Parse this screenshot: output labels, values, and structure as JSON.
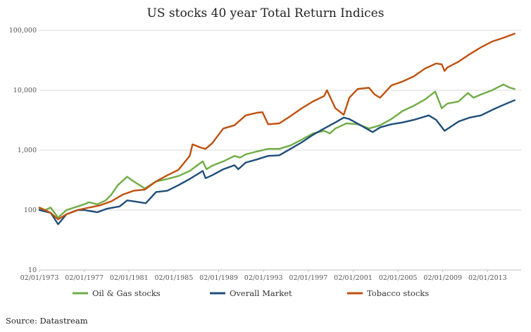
{
  "chart_data": {
    "type": "line",
    "title": "US stocks 40 year Total Return Indices",
    "source": "Source: Datastream",
    "y_scale": "log",
    "ylim": [
      10,
      100000
    ],
    "xlim": [
      "1973-01-02",
      "2015-12-31"
    ],
    "y_ticks": [
      {
        "value": 10,
        "label": "10"
      },
      {
        "value": 100,
        "label": "100"
      },
      {
        "value": 1000,
        "label": "1,000"
      },
      {
        "value": 10000,
        "label": "10,000"
      },
      {
        "value": 100000,
        "label": "100,000"
      }
    ],
    "x_ticks": [
      {
        "value": "1973-01-02",
        "label": "02/01/1973"
      },
      {
        "value": "1977-01-02",
        "label": "02/01/1977"
      },
      {
        "value": "1981-01-02",
        "label": "02/01/1981"
      },
      {
        "value": "1985-01-02",
        "label": "02/01/1985"
      },
      {
        "value": "1989-01-02",
        "label": "02/01/1989"
      },
      {
        "value": "1993-01-02",
        "label": "02/01/1993"
      },
      {
        "value": "1997-01-02",
        "label": "02/01/1997"
      },
      {
        "value": "2001-01-02",
        "label": "02/01/2001"
      },
      {
        "value": "2005-01-02",
        "label": "02/01/2005"
      },
      {
        "value": "2009-01-02",
        "label": "02/01/2009"
      },
      {
        "value": "2013-01-02",
        "label": "02/01/2013"
      }
    ],
    "grid": true,
    "legend_position": "bottom",
    "series": [
      {
        "name": "Oil & Gas stocks",
        "color": "#70ad47",
        "points": [
          [
            "1973-01-02",
            105
          ],
          [
            "1973-07-01",
            100
          ],
          [
            "1974-01-01",
            110
          ],
          [
            "1974-09-01",
            75
          ],
          [
            "1975-06-01",
            100
          ],
          [
            "1976-06-01",
            115
          ],
          [
            "1977-01-01",
            125
          ],
          [
            "1977-06-01",
            135
          ],
          [
            "1978-03-01",
            125
          ],
          [
            "1978-12-01",
            145
          ],
          [
            "1979-06-01",
            180
          ],
          [
            "1980-01-01",
            260
          ],
          [
            "1980-11-01",
            360
          ],
          [
            "1981-06-01",
            300
          ],
          [
            "1982-06-01",
            230
          ],
          [
            "1983-06-01",
            300
          ],
          [
            "1984-06-01",
            330
          ],
          [
            "1985-06-01",
            370
          ],
          [
            "1986-06-01",
            450
          ],
          [
            "1987-08-01",
            650
          ],
          [
            "1987-12-01",
            480
          ],
          [
            "1988-06-01",
            550
          ],
          [
            "1989-06-01",
            650
          ],
          [
            "1990-06-01",
            800
          ],
          [
            "1990-12-01",
            750
          ],
          [
            "1991-06-01",
            850
          ],
          [
            "1992-06-01",
            950
          ],
          [
            "1993-06-01",
            1050
          ],
          [
            "1994-06-01",
            1050
          ],
          [
            "1995-06-01",
            1200
          ],
          [
            "1996-06-01",
            1500
          ],
          [
            "1997-06-01",
            1900
          ],
          [
            "1998-06-01",
            2100
          ],
          [
            "1998-12-01",
            1900
          ],
          [
            "1999-06-01",
            2300
          ],
          [
            "2000-06-01",
            2800
          ],
          [
            "2001-06-01",
            2700
          ],
          [
            "2002-06-01",
            2300
          ],
          [
            "2003-06-01",
            2600
          ],
          [
            "2004-06-01",
            3300
          ],
          [
            "2005-06-01",
            4500
          ],
          [
            "2006-06-01",
            5500
          ],
          [
            "2007-06-01",
            7000
          ],
          [
            "2008-05-01",
            9500
          ],
          [
            "2008-12-01",
            5000
          ],
          [
            "2009-06-01",
            6000
          ],
          [
            "2010-06-01",
            6500
          ],
          [
            "2011-04-01",
            9000
          ],
          [
            "2011-10-01",
            7500
          ],
          [
            "2012-06-01",
            8500
          ],
          [
            "2013-06-01",
            10000
          ],
          [
            "2014-06-01",
            12500
          ],
          [
            "2015-01-01",
            11000
          ],
          [
            "2015-06-01",
            10500
          ]
        ]
      },
      {
        "name": "Overall Market",
        "color": "#1f4e79",
        "points": [
          [
            "1973-01-02",
            100
          ],
          [
            "1973-07-01",
            95
          ],
          [
            "1974-01-01",
            90
          ],
          [
            "1974-09-01",
            58
          ],
          [
            "1975-06-01",
            85
          ],
          [
            "1976-06-01",
            100
          ],
          [
            "1977-01-01",
            100
          ],
          [
            "1978-03-01",
            92
          ],
          [
            "1979-01-01",
            105
          ],
          [
            "1980-03-01",
            115
          ],
          [
            "1980-11-01",
            145
          ],
          [
            "1981-06-01",
            140
          ],
          [
            "1982-07-01",
            130
          ],
          [
            "1983-06-01",
            200
          ],
          [
            "1984-06-01",
            210
          ],
          [
            "1985-06-01",
            260
          ],
          [
            "1986-06-01",
            330
          ],
          [
            "1987-08-01",
            450
          ],
          [
            "1987-11-01",
            340
          ],
          [
            "1988-06-01",
            380
          ],
          [
            "1989-06-01",
            480
          ],
          [
            "1990-06-01",
            560
          ],
          [
            "1990-10-01",
            480
          ],
          [
            "1991-06-01",
            620
          ],
          [
            "1992-06-01",
            700
          ],
          [
            "1993-06-01",
            800
          ],
          [
            "1994-06-01",
            820
          ],
          [
            "1995-06-01",
            1050
          ],
          [
            "1996-06-01",
            1350
          ],
          [
            "1997-06-01",
            1800
          ],
          [
            "1998-06-01",
            2300
          ],
          [
            "1999-06-01",
            2900
          ],
          [
            "2000-03-01",
            3500
          ],
          [
            "2000-09-01",
            3300
          ],
          [
            "2001-09-01",
            2600
          ],
          [
            "2002-10-01",
            2000
          ],
          [
            "2003-06-01",
            2400
          ],
          [
            "2004-06-01",
            2700
          ],
          [
            "2005-06-01",
            2900
          ],
          [
            "2006-06-01",
            3200
          ],
          [
            "2007-10-01",
            3800
          ],
          [
            "2008-06-01",
            3200
          ],
          [
            "2009-03-01",
            2100
          ],
          [
            "2010-06-01",
            3000
          ],
          [
            "2011-06-01",
            3500
          ],
          [
            "2012-06-01",
            3800
          ],
          [
            "2013-06-01",
            4700
          ],
          [
            "2014-06-01",
            5700
          ],
          [
            "2015-06-01",
            6800
          ]
        ]
      },
      {
        "name": "Tobacco stocks",
        "color": "#c0500e",
        "points": [
          [
            "1973-01-02",
            110
          ],
          [
            "1973-07-01",
            100
          ],
          [
            "1974-01-01",
            90
          ],
          [
            "1974-09-01",
            70
          ],
          [
            "1975-06-01",
            85
          ],
          [
            "1976-06-01",
            100
          ],
          [
            "1977-06-01",
            110
          ],
          [
            "1978-06-01",
            120
          ],
          [
            "1979-06-01",
            140
          ],
          [
            "1980-06-01",
            180
          ],
          [
            "1981-06-01",
            210
          ],
          [
            "1982-06-01",
            220
          ],
          [
            "1983-06-01",
            300
          ],
          [
            "1984-06-01",
            380
          ],
          [
            "1985-06-01",
            470
          ],
          [
            "1986-06-01",
            800
          ],
          [
            "1986-09-01",
            1250
          ],
          [
            "1987-06-01",
            1100
          ],
          [
            "1987-11-01",
            1050
          ],
          [
            "1988-06-01",
            1300
          ],
          [
            "1989-06-01",
            2300
          ],
          [
            "1990-06-01",
            2600
          ],
          [
            "1991-06-01",
            3800
          ],
          [
            "1992-06-01",
            4200
          ],
          [
            "1992-12-01",
            4300
          ],
          [
            "1993-06-01",
            2700
          ],
          [
            "1994-06-01",
            2800
          ],
          [
            "1995-06-01",
            3700
          ],
          [
            "1996-06-01",
            5000
          ],
          [
            "1997-06-01",
            6500
          ],
          [
            "1998-06-01",
            8000
          ],
          [
            "1998-09-01",
            10000
          ],
          [
            "1999-06-01",
            5000
          ],
          [
            "2000-03-01",
            3900
          ],
          [
            "2000-09-01",
            7500
          ],
          [
            "2001-06-01",
            10500
          ],
          [
            "2002-06-01",
            11000
          ],
          [
            "2002-12-01",
            8500
          ],
          [
            "2003-06-01",
            7500
          ],
          [
            "2004-06-01",
            12000
          ],
          [
            "2005-06-01",
            14000
          ],
          [
            "2006-06-01",
            17000
          ],
          [
            "2007-06-01",
            23000
          ],
          [
            "2008-06-01",
            28000
          ],
          [
            "2008-12-01",
            27000
          ],
          [
            "2009-03-01",
            21000
          ],
          [
            "2009-06-01",
            24000
          ],
          [
            "2010-06-01",
            30000
          ],
          [
            "2011-06-01",
            40000
          ],
          [
            "2012-06-01",
            52000
          ],
          [
            "2013-06-01",
            65000
          ],
          [
            "2014-06-01",
            75000
          ],
          [
            "2015-06-01",
            88000
          ]
        ]
      }
    ]
  }
}
